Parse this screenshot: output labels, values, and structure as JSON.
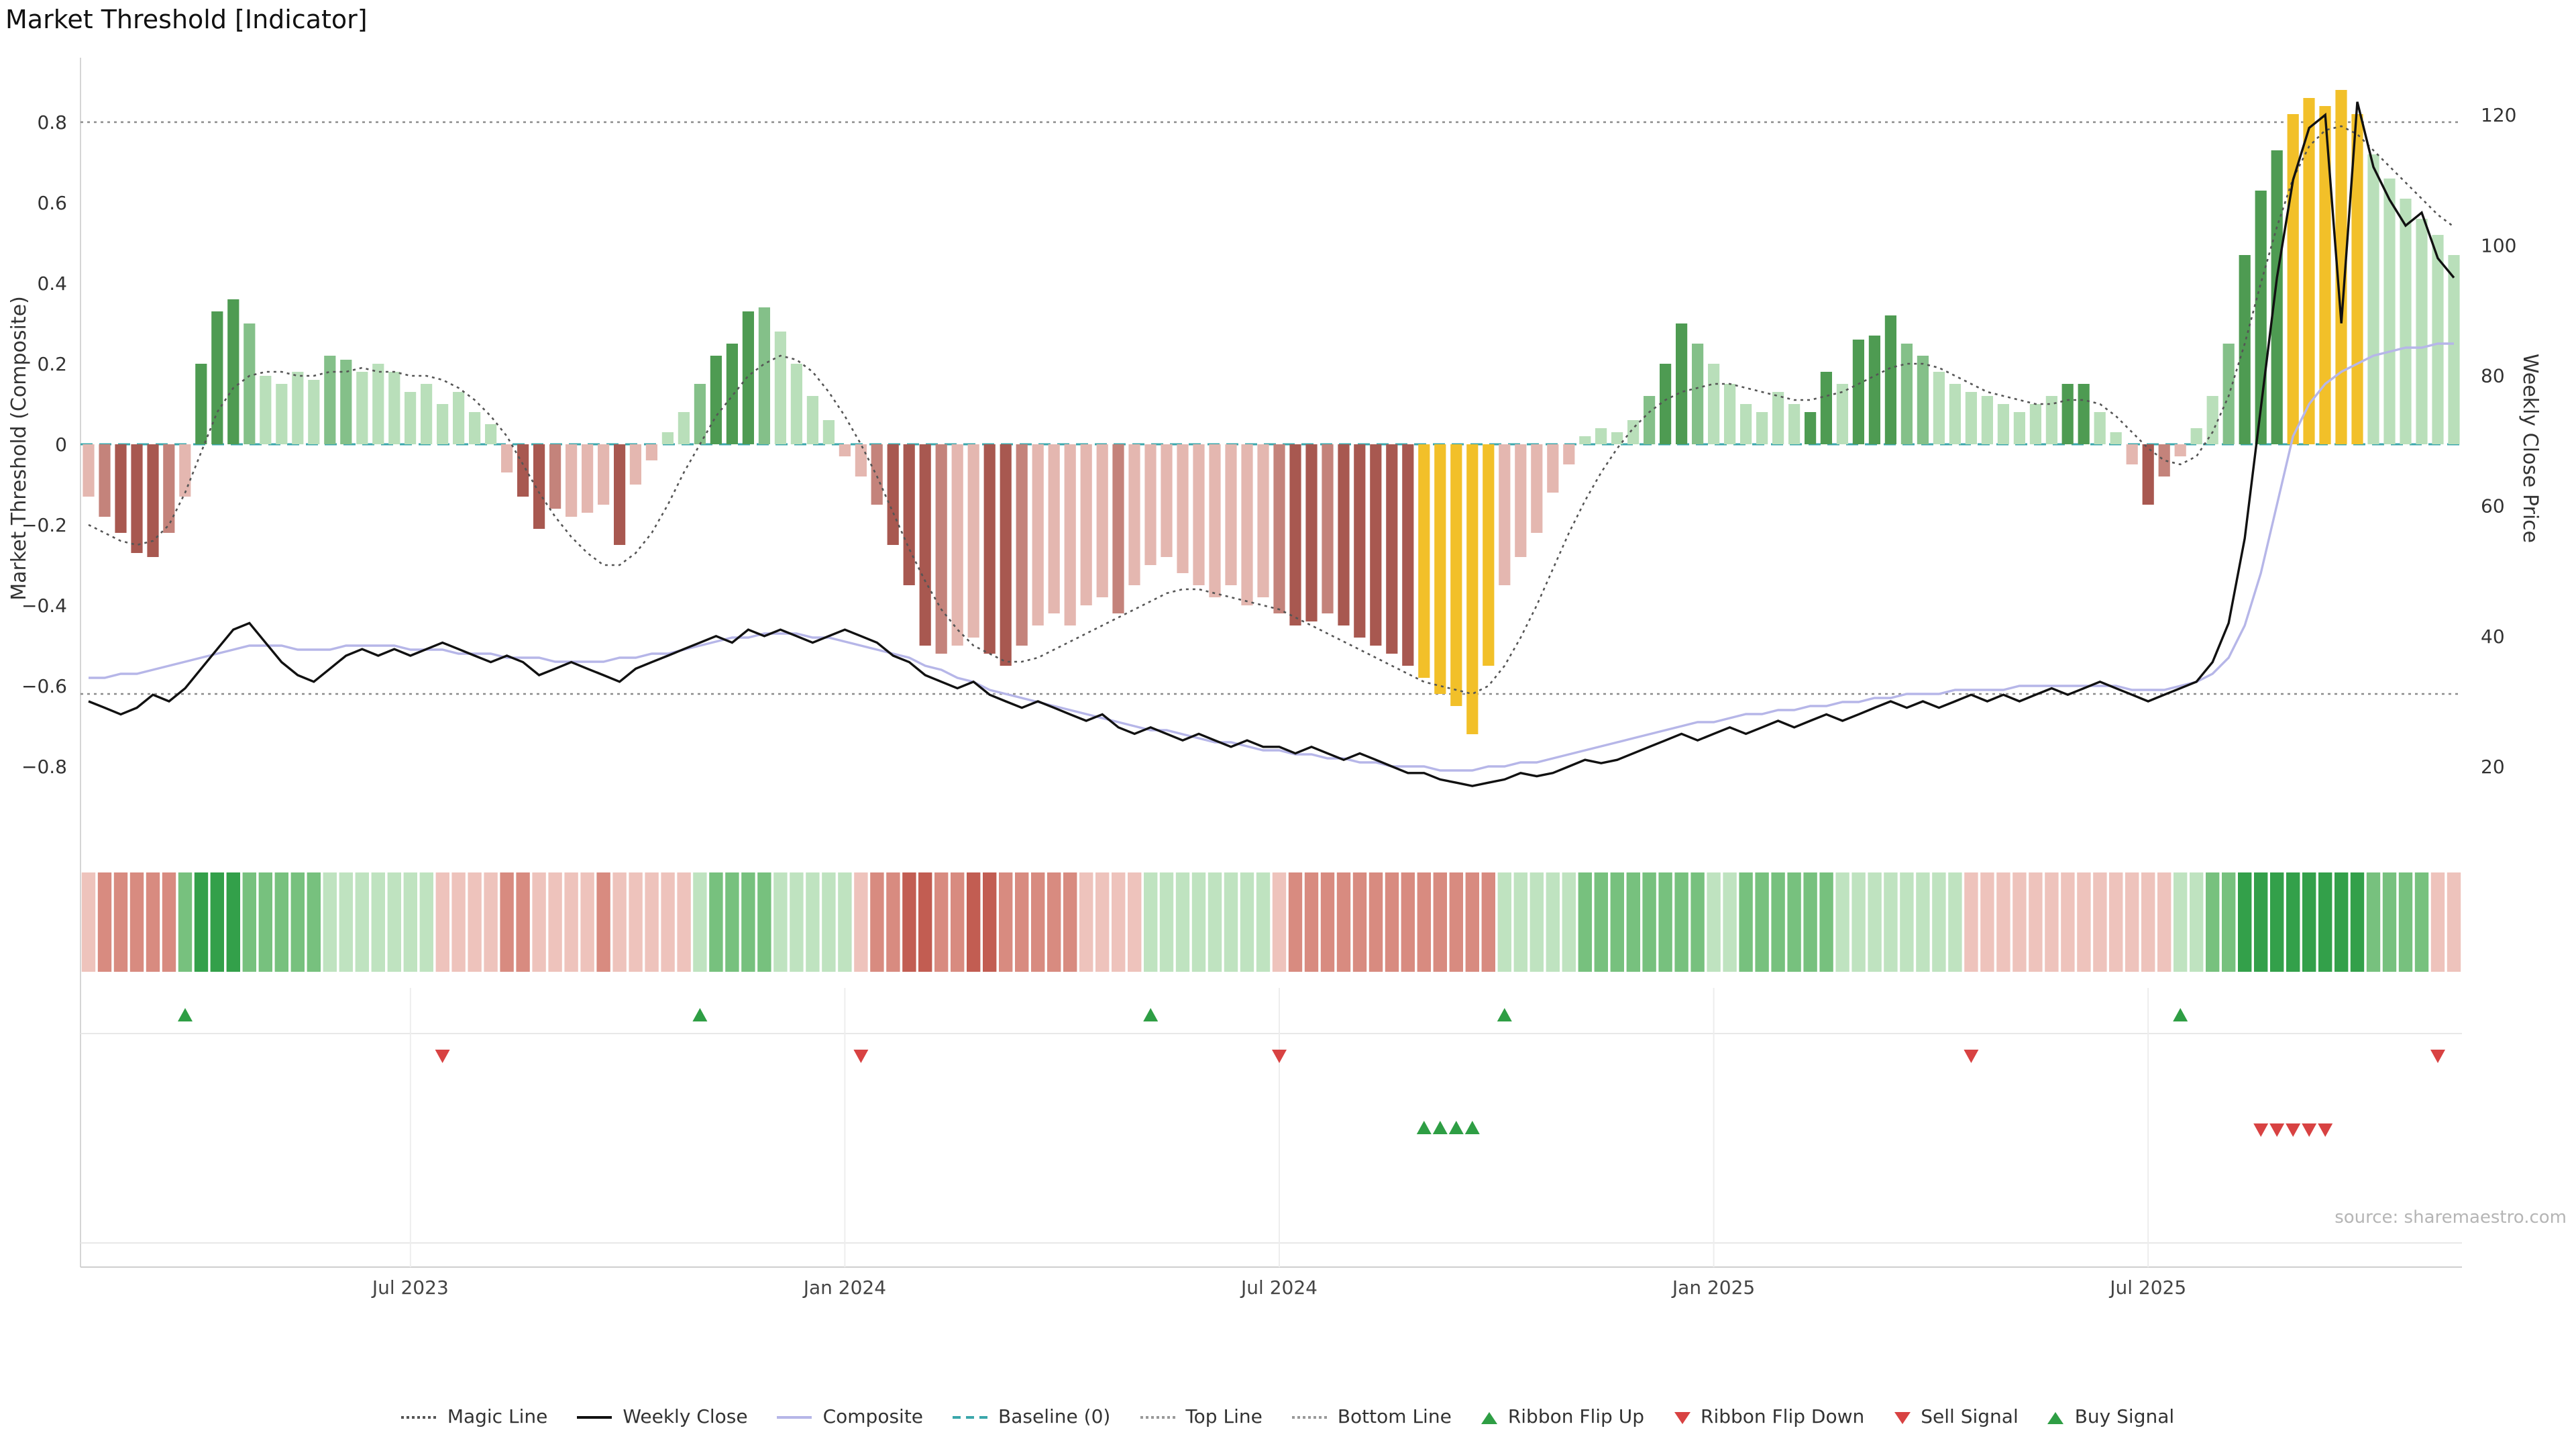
{
  "chart_data": {
    "type": "combo-bar-line",
    "title": "Market Threshold [Indicator]",
    "source": "source: sharemaestro.com",
    "left_axis": {
      "label": "Market Threshold (Composite)",
      "ticks": [
        0.8,
        0.6,
        0.4,
        0.2,
        0,
        -0.2,
        -0.4,
        -0.6,
        -0.8
      ],
      "range": [
        -0.96,
        0.96
      ]
    },
    "right_axis": {
      "label": "Weekly Close Price",
      "ticks": [
        120,
        100,
        80,
        60,
        40,
        20
      ],
      "range": [
        9,
        129
      ]
    },
    "x_ticks": [
      {
        "label": "Jul 2023",
        "week": 21
      },
      {
        "label": "Jan 2024",
        "week": 48
      },
      {
        "label": "Jul 2024",
        "week": 75
      },
      {
        "label": "Jan 2025",
        "week": 102
      },
      {
        "label": "Jul 2025",
        "week": 129
      }
    ],
    "reference_lines": {
      "top_line": 0.8,
      "bottom_line": -0.62,
      "baseline": 0
    },
    "palette": {
      "dg": "#4e9b52",
      "mg": "#84c089",
      "lg": "#b9dfba",
      "dr": "#a85850",
      "mr": "#c4837b",
      "lr": "#e4b7b0",
      "y": "#f2c029"
    },
    "ribbon_palette": {
      "3": "#33a04a",
      "2": "#77c17e",
      "1": "#bfe3c0",
      "-1": "#eec3bc",
      "-2": "#d88b80",
      "-3": "#c25d52"
    },
    "line_colors": {
      "weekly_close": "#111111",
      "composite": "#b6b6e8",
      "magic_line": "#555555",
      "top_bottom": "#8c8c8c",
      "baseline": "#3aa7ab"
    },
    "signal_colors": {
      "up": "#2e9e44",
      "down": "#d84242"
    },
    "bars": [
      [
        -0.13,
        "lr"
      ],
      [
        -0.18,
        "mr"
      ],
      [
        -0.22,
        "dr"
      ],
      [
        -0.27,
        "dr"
      ],
      [
        -0.28,
        "dr"
      ],
      [
        -0.22,
        "mr"
      ],
      [
        -0.13,
        "lr"
      ],
      [
        0.2,
        "dg"
      ],
      [
        0.33,
        "dg"
      ],
      [
        0.36,
        "dg"
      ],
      [
        0.3,
        "mg"
      ],
      [
        0.17,
        "lg"
      ],
      [
        0.15,
        "lg"
      ],
      [
        0.18,
        "lg"
      ],
      [
        0.16,
        "lg"
      ],
      [
        0.22,
        "mg"
      ],
      [
        0.21,
        "mg"
      ],
      [
        0.18,
        "lg"
      ],
      [
        0.2,
        "lg"
      ],
      [
        0.18,
        "lg"
      ],
      [
        0.13,
        "lg"
      ],
      [
        0.15,
        "lg"
      ],
      [
        0.1,
        "lg"
      ],
      [
        0.13,
        "lg"
      ],
      [
        0.08,
        "lg"
      ],
      [
        0.05,
        "lg"
      ],
      [
        -0.07,
        "lr"
      ],
      [
        -0.13,
        "dr"
      ],
      [
        -0.21,
        "dr"
      ],
      [
        -0.16,
        "mr"
      ],
      [
        -0.18,
        "lr"
      ],
      [
        -0.17,
        "lr"
      ],
      [
        -0.15,
        "lr"
      ],
      [
        -0.25,
        "dr"
      ],
      [
        -0.1,
        "lr"
      ],
      [
        -0.04,
        "lr"
      ],
      [
        0.03,
        "lg"
      ],
      [
        0.08,
        "lg"
      ],
      [
        0.15,
        "mg"
      ],
      [
        0.22,
        "dg"
      ],
      [
        0.25,
        "dg"
      ],
      [
        0.33,
        "dg"
      ],
      [
        0.34,
        "mg"
      ],
      [
        0.28,
        "lg"
      ],
      [
        0.2,
        "lg"
      ],
      [
        0.12,
        "lg"
      ],
      [
        0.06,
        "lg"
      ],
      [
        -0.03,
        "lr"
      ],
      [
        -0.08,
        "lr"
      ],
      [
        -0.15,
        "mr"
      ],
      [
        -0.25,
        "dr"
      ],
      [
        -0.35,
        "dr"
      ],
      [
        -0.5,
        "dr"
      ],
      [
        -0.52,
        "mr"
      ],
      [
        -0.5,
        "lr"
      ],
      [
        -0.48,
        "lr"
      ],
      [
        -0.52,
        "dr"
      ],
      [
        -0.55,
        "dr"
      ],
      [
        -0.5,
        "mr"
      ],
      [
        -0.45,
        "lr"
      ],
      [
        -0.42,
        "lr"
      ],
      [
        -0.45,
        "lr"
      ],
      [
        -0.4,
        "lr"
      ],
      [
        -0.38,
        "lr"
      ],
      [
        -0.42,
        "mr"
      ],
      [
        -0.35,
        "lr"
      ],
      [
        -0.3,
        "lr"
      ],
      [
        -0.28,
        "lr"
      ],
      [
        -0.32,
        "lr"
      ],
      [
        -0.35,
        "lr"
      ],
      [
        -0.38,
        "lr"
      ],
      [
        -0.35,
        "lr"
      ],
      [
        -0.4,
        "lr"
      ],
      [
        -0.38,
        "lr"
      ],
      [
        -0.42,
        "mr"
      ],
      [
        -0.45,
        "dr"
      ],
      [
        -0.44,
        "dr"
      ],
      [
        -0.42,
        "mr"
      ],
      [
        -0.45,
        "dr"
      ],
      [
        -0.48,
        "dr"
      ],
      [
        -0.5,
        "dr"
      ],
      [
        -0.52,
        "dr"
      ],
      [
        -0.55,
        "dr"
      ],
      [
        -0.58,
        "y"
      ],
      [
        -0.62,
        "y"
      ],
      [
        -0.65,
        "y"
      ],
      [
        -0.72,
        "y"
      ],
      [
        -0.55,
        "y"
      ],
      [
        -0.35,
        "lr"
      ],
      [
        -0.28,
        "lr"
      ],
      [
        -0.22,
        "lr"
      ],
      [
        -0.12,
        "lr"
      ],
      [
        -0.05,
        "lr"
      ],
      [
        0.02,
        "lg"
      ],
      [
        0.04,
        "lg"
      ],
      [
        0.03,
        "lg"
      ],
      [
        0.06,
        "lg"
      ],
      [
        0.12,
        "mg"
      ],
      [
        0.2,
        "dg"
      ],
      [
        0.3,
        "dg"
      ],
      [
        0.25,
        "mg"
      ],
      [
        0.2,
        "lg"
      ],
      [
        0.15,
        "lg"
      ],
      [
        0.1,
        "lg"
      ],
      [
        0.08,
        "lg"
      ],
      [
        0.13,
        "lg"
      ],
      [
        0.1,
        "lg"
      ],
      [
        0.08,
        "dg"
      ],
      [
        0.18,
        "dg"
      ],
      [
        0.15,
        "lg"
      ],
      [
        0.26,
        "dg"
      ],
      [
        0.27,
        "dg"
      ],
      [
        0.32,
        "dg"
      ],
      [
        0.25,
        "mg"
      ],
      [
        0.22,
        "mg"
      ],
      [
        0.18,
        "lg"
      ],
      [
        0.15,
        "lg"
      ],
      [
        0.13,
        "lg"
      ],
      [
        0.12,
        "lg"
      ],
      [
        0.1,
        "lg"
      ],
      [
        0.08,
        "lg"
      ],
      [
        0.1,
        "lg"
      ],
      [
        0.12,
        "lg"
      ],
      [
        0.15,
        "dg"
      ],
      [
        0.15,
        "dg"
      ],
      [
        0.08,
        "lg"
      ],
      [
        0.03,
        "lg"
      ],
      [
        -0.05,
        "lr"
      ],
      [
        -0.15,
        "dr"
      ],
      [
        -0.08,
        "mr"
      ],
      [
        -0.03,
        "lr"
      ],
      [
        0.04,
        "lg"
      ],
      [
        0.12,
        "lg"
      ],
      [
        0.25,
        "mg"
      ],
      [
        0.47,
        "dg"
      ],
      [
        0.63,
        "dg"
      ],
      [
        0.73,
        "dg"
      ],
      [
        0.82,
        "y"
      ],
      [
        0.86,
        "y"
      ],
      [
        0.84,
        "y"
      ],
      [
        0.88,
        "y"
      ],
      [
        0.82,
        "y"
      ],
      [
        0.72,
        "lg"
      ],
      [
        0.66,
        "lg"
      ],
      [
        0.61,
        "lg"
      ],
      [
        0.56,
        "lg"
      ],
      [
        0.52,
        "lg"
      ],
      [
        0.47,
        "lg"
      ]
    ],
    "weekly_close": [
      30,
      29,
      28,
      29,
      31,
      30,
      32,
      35,
      38,
      41,
      42,
      39,
      36,
      34,
      33,
      35,
      37,
      38,
      37,
      38,
      37,
      38,
      39,
      38,
      37,
      36,
      37,
      36,
      34,
      35,
      36,
      35,
      34,
      33,
      35,
      36,
      37,
      38,
      39,
      40,
      39,
      41,
      40,
      41,
      40,
      39,
      40,
      41,
      40,
      39,
      37,
      36,
      34,
      33,
      32,
      33,
      31,
      30,
      29,
      30,
      29,
      28,
      27,
      28,
      26,
      25,
      26,
      25,
      24,
      25,
      24,
      23,
      24,
      23,
      23,
      22,
      23,
      22,
      21,
      22,
      21,
      20,
      19,
      19,
      18,
      17.5,
      17,
      17.5,
      18,
      19,
      18.5,
      19,
      20,
      21,
      20.5,
      21,
      22,
      23,
      24,
      25,
      24,
      25,
      26,
      25,
      26,
      27,
      26,
      27,
      28,
      27,
      28,
      29,
      30,
      29,
      30,
      29,
      30,
      31,
      30,
      31,
      30,
      31,
      32,
      31,
      32,
      33,
      32,
      31,
      30,
      31,
      32,
      33,
      36,
      42,
      55,
      75,
      95,
      110,
      118,
      120,
      88,
      122,
      112,
      107,
      103,
      105,
      98,
      95
    ],
    "composite": [
      -0.58,
      -0.58,
      -0.57,
      -0.57,
      -0.56,
      -0.55,
      -0.54,
      -0.53,
      -0.52,
      -0.51,
      -0.5,
      -0.5,
      -0.5,
      -0.51,
      -0.51,
      -0.51,
      -0.5,
      -0.5,
      -0.5,
      -0.5,
      -0.51,
      -0.51,
      -0.51,
      -0.52,
      -0.52,
      -0.52,
      -0.53,
      -0.53,
      -0.53,
      -0.54,
      -0.54,
      -0.54,
      -0.54,
      -0.53,
      -0.53,
      -0.52,
      -0.52,
      -0.51,
      -0.5,
      -0.49,
      -0.48,
      -0.48,
      -0.47,
      -0.47,
      -0.47,
      -0.48,
      -0.48,
      -0.49,
      -0.5,
      -0.51,
      -0.52,
      -0.53,
      -0.55,
      -0.56,
      -0.58,
      -0.59,
      -0.61,
      -0.62,
      -0.63,
      -0.64,
      -0.65,
      -0.66,
      -0.67,
      -0.68,
      -0.69,
      -0.7,
      -0.71,
      -0.71,
      -0.72,
      -0.73,
      -0.74,
      -0.74,
      -0.75,
      -0.76,
      -0.76,
      -0.77,
      -0.77,
      -0.78,
      -0.78,
      -0.79,
      -0.79,
      -0.8,
      -0.8,
      -0.8,
      -0.81,
      -0.81,
      -0.81,
      -0.8,
      -0.8,
      -0.79,
      -0.79,
      -0.78,
      -0.77,
      -0.76,
      -0.75,
      -0.74,
      -0.73,
      -0.72,
      -0.71,
      -0.7,
      -0.69,
      -0.69,
      -0.68,
      -0.67,
      -0.67,
      -0.66,
      -0.66,
      -0.65,
      -0.65,
      -0.64,
      -0.64,
      -0.63,
      -0.63,
      -0.62,
      -0.62,
      -0.62,
      -0.61,
      -0.61,
      -0.61,
      -0.61,
      -0.6,
      -0.6,
      -0.6,
      -0.6,
      -0.6,
      -0.6,
      -0.6,
      -0.61,
      -0.61,
      -0.61,
      -0.6,
      -0.59,
      -0.57,
      -0.53,
      -0.45,
      -0.32,
      -0.15,
      0.02,
      0.1,
      0.15,
      0.18,
      0.2,
      0.22,
      0.23,
      0.24,
      0.24,
      0.25,
      0.25
    ],
    "magic_line": [
      -0.2,
      -0.22,
      -0.24,
      -0.25,
      -0.24,
      -0.2,
      -0.12,
      -0.02,
      0.08,
      0.14,
      0.17,
      0.18,
      0.18,
      0.17,
      0.17,
      0.18,
      0.18,
      0.19,
      0.18,
      0.18,
      0.17,
      0.17,
      0.16,
      0.14,
      0.11,
      0.07,
      0.02,
      -0.05,
      -0.12,
      -0.18,
      -0.23,
      -0.27,
      -0.3,
      -0.3,
      -0.27,
      -0.22,
      -0.15,
      -0.07,
      0.0,
      0.07,
      0.12,
      0.17,
      0.2,
      0.22,
      0.21,
      0.18,
      0.13,
      0.07,
      0.0,
      -0.08,
      -0.17,
      -0.26,
      -0.34,
      -0.41,
      -0.46,
      -0.5,
      -0.52,
      -0.54,
      -0.54,
      -0.53,
      -0.51,
      -0.49,
      -0.47,
      -0.45,
      -0.43,
      -0.41,
      -0.39,
      -0.37,
      -0.36,
      -0.36,
      -0.37,
      -0.38,
      -0.39,
      -0.4,
      -0.41,
      -0.43,
      -0.45,
      -0.47,
      -0.49,
      -0.51,
      -0.53,
      -0.55,
      -0.57,
      -0.59,
      -0.6,
      -0.61,
      -0.62,
      -0.6,
      -0.55,
      -0.48,
      -0.4,
      -0.31,
      -0.22,
      -0.14,
      -0.07,
      -0.01,
      0.04,
      0.08,
      0.11,
      0.13,
      0.14,
      0.15,
      0.15,
      0.14,
      0.13,
      0.12,
      0.11,
      0.11,
      0.12,
      0.13,
      0.15,
      0.17,
      0.19,
      0.2,
      0.2,
      0.19,
      0.17,
      0.15,
      0.13,
      0.12,
      0.11,
      0.1,
      0.1,
      0.11,
      0.11,
      0.1,
      0.07,
      0.03,
      -0.01,
      -0.04,
      -0.05,
      -0.03,
      0.03,
      0.12,
      0.25,
      0.4,
      0.54,
      0.66,
      0.74,
      0.78,
      0.79,
      0.77,
      0.73,
      0.69,
      0.65,
      0.61,
      0.57,
      0.54
    ],
    "ribbon": [
      -1,
      -2,
      -2,
      -2,
      -2,
      -2,
      2,
      3,
      3,
      3,
      2,
      2,
      2,
      2,
      2,
      1,
      1,
      1,
      1,
      1,
      1,
      1,
      -1,
      -1,
      -1,
      -1,
      -2,
      -2,
      -1,
      -1,
      -1,
      -1,
      -2,
      -1,
      -1,
      -1,
      -1,
      -1,
      1,
      2,
      2,
      2,
      2,
      1,
      1,
      1,
      1,
      1,
      -1,
      -2,
      -2,
      -3,
      -3,
      -2,
      -2,
      -3,
      -3,
      -2,
      -2,
      -2,
      -2,
      -2,
      -1,
      -1,
      -1,
      -1,
      1,
      1,
      1,
      1,
      1,
      1,
      1,
      1,
      -1,
      -2,
      -2,
      -2,
      -2,
      -2,
      -2,
      -2,
      -2,
      -2,
      -2,
      -2,
      -2,
      -2,
      1,
      1,
      1,
      1,
      1,
      2,
      2,
      2,
      2,
      2,
      2,
      2,
      2,
      1,
      1,
      2,
      2,
      2,
      2,
      2,
      2,
      1,
      1,
      1,
      1,
      1,
      1,
      1,
      1,
      -1,
      -1,
      -1,
      -1,
      -1,
      -1,
      -1,
      -1,
      -1,
      -1,
      -1,
      -1,
      -1,
      1,
      1,
      2,
      2,
      3,
      3,
      3,
      3,
      3,
      3,
      3,
      3,
      2,
      2,
      2,
      2,
      -1,
      -1
    ],
    "signals": {
      "ribbon_flip_up_weeks": [
        7,
        39,
        67,
        89,
        131
      ],
      "ribbon_flip_down_weeks": [
        23,
        49,
        75,
        118,
        147
      ],
      "buy_signal_weeks": [
        84,
        85,
        86,
        87
      ],
      "sell_signal_weeks": [
        136,
        137,
        138,
        139,
        140
      ]
    },
    "legend": [
      {
        "label": "Magic Line",
        "marker": "dotted-line",
        "color": "#555555"
      },
      {
        "label": "Weekly Close",
        "marker": "solid-line",
        "color": "#111111"
      },
      {
        "label": "Composite",
        "marker": "solid-line",
        "color": "#b6b6e8"
      },
      {
        "label": "Baseline (0)",
        "marker": "dashed-line",
        "color": "#3aa7ab"
      },
      {
        "label": "Top Line",
        "marker": "dotted-line",
        "color": "#999999"
      },
      {
        "label": "Bottom Line",
        "marker": "dotted-line",
        "color": "#999999"
      },
      {
        "label": "Ribbon Flip Up",
        "marker": "triangle-up",
        "color": "#2e9e44"
      },
      {
        "label": "Ribbon Flip Down",
        "marker": "triangle-down",
        "color": "#d84242"
      },
      {
        "label": "Sell Signal",
        "marker": "triangle-down",
        "color": "#d84242"
      },
      {
        "label": "Buy Signal",
        "marker": "triangle-up",
        "color": "#2e9e44"
      }
    ]
  }
}
